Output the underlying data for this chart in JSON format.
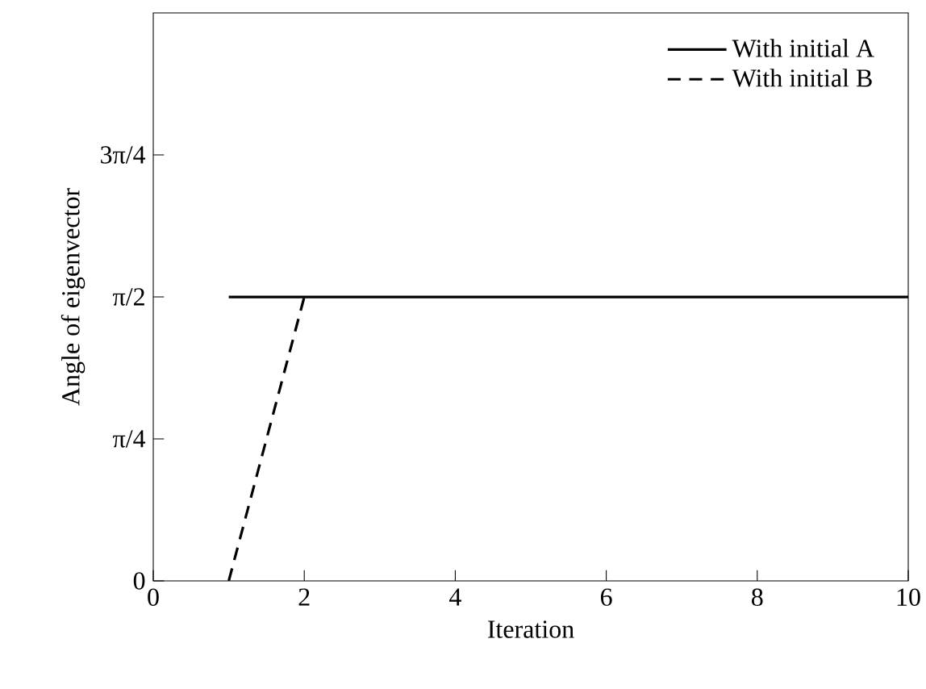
{
  "chart_data": {
    "type": "line",
    "xlabel": "Iteration",
    "ylabel": "Angle of eigenvector",
    "xlim": [
      0,
      10
    ],
    "xticks": [
      0,
      2,
      4,
      6,
      8,
      10
    ],
    "ylim": [
      0,
      3.1416
    ],
    "yticks": [
      {
        "value": 0,
        "label": "0"
      },
      {
        "value": 0.7854,
        "label": "π/4"
      },
      {
        "value": 1.5708,
        "label": "π/2"
      },
      {
        "value": 2.3562,
        "label": "3π/4"
      }
    ],
    "grid": false,
    "legend": "top right",
    "marker": "none",
    "series": [
      {
        "name": "With initial A",
        "color": "#000000",
        "line_style": "solid",
        "x": [
          1,
          10
        ],
        "values": [
          1.57,
          1.57
        ]
      },
      {
        "name": "With initial B",
        "color": "#000000",
        "line_style": "dashed",
        "x": [
          1,
          2
        ],
        "values": [
          0,
          1.57
        ]
      }
    ]
  }
}
